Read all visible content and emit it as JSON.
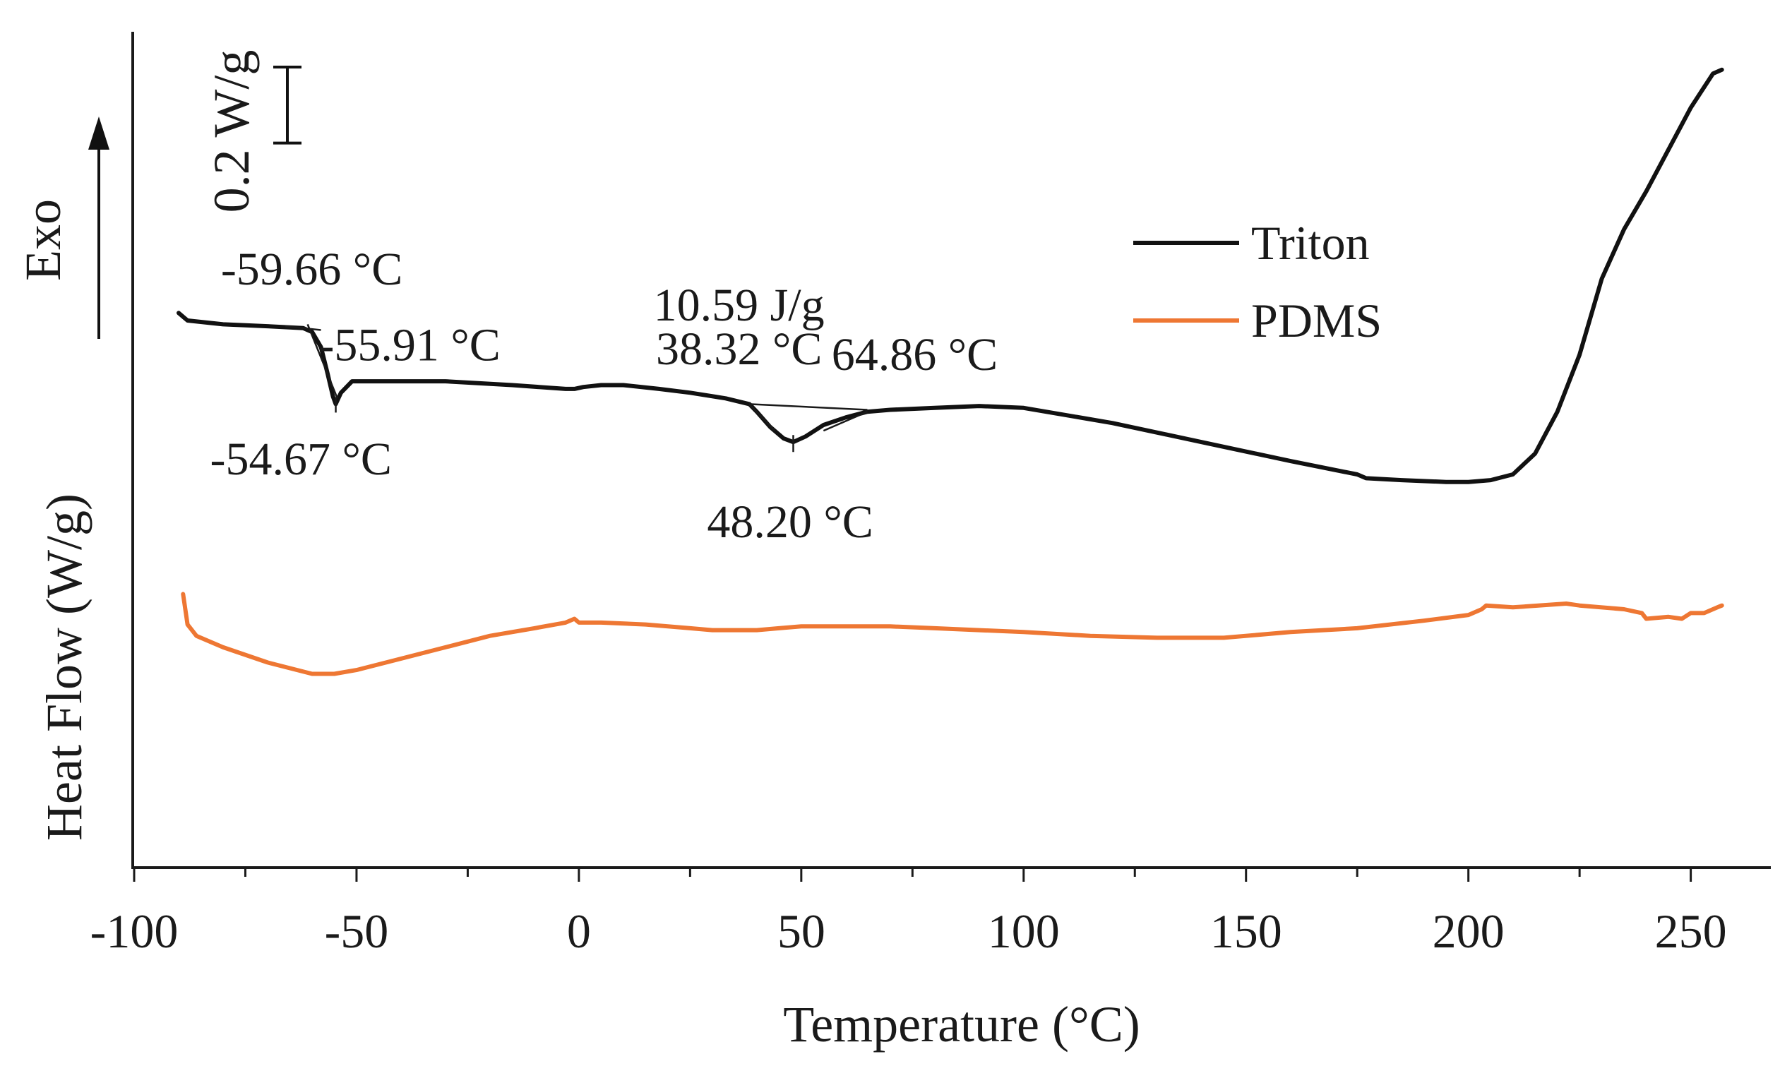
{
  "chart_data": {
    "type": "line",
    "title": "",
    "xlabel": "Temperature (°C)",
    "ylabel": "Heat Flow (W/g)",
    "exo_label": "Exo",
    "scale_bar_label": "0.2 W/g",
    "xlim": [
      -100,
      268
    ],
    "ylim": [
      -1.0,
      1.2
    ],
    "xticks": [
      -100,
      -50,
      0,
      50,
      100,
      150,
      200,
      250
    ],
    "xtick_labels": [
      "-100",
      "-50",
      "0",
      "50",
      "100",
      "150",
      "200",
      "250"
    ],
    "legend": {
      "position": "top-right"
    },
    "series": [
      {
        "name": "Triton",
        "color": "#111111",
        "x": [
          -90,
          -88,
          -80,
          -70,
          -62,
          -60,
          -58,
          -56.5,
          -55.3,
          -54.67,
          -53.5,
          -51,
          -45,
          -30,
          -15,
          -3,
          -1,
          1,
          5,
          10,
          18,
          25,
          33,
          38.32,
          40,
          43,
          46,
          48.2,
          51,
          55,
          60,
          64.86,
          70,
          80,
          90,
          100,
          120,
          140,
          160,
          175,
          177,
          185,
          195,
          200,
          205,
          210,
          215,
          220,
          225,
          230,
          235,
          240,
          245,
          250,
          255,
          257
        ],
        "y": [
          0.46,
          0.44,
          0.43,
          0.425,
          0.42,
          0.41,
          0.37,
          0.3,
          0.24,
          0.22,
          0.25,
          0.28,
          0.28,
          0.28,
          0.27,
          0.26,
          0.26,
          0.265,
          0.27,
          0.27,
          0.26,
          0.25,
          0.235,
          0.22,
          0.2,
          0.16,
          0.13,
          0.12,
          0.135,
          0.165,
          0.185,
          0.2,
          0.205,
          0.21,
          0.215,
          0.21,
          0.17,
          0.12,
          0.07,
          0.035,
          0.025,
          0.02,
          0.015,
          0.015,
          0.02,
          0.035,
          0.09,
          0.2,
          0.35,
          0.55,
          0.68,
          0.78,
          0.89,
          1.0,
          1.09,
          1.1
        ],
        "annotations": [
          {
            "label": "-59.66 °C",
            "x": -59.66
          },
          {
            "label": "-55.91 °C",
            "x": -55.91
          },
          {
            "label": "-54.67 °C",
            "x": -54.67
          },
          {
            "label": "10.59 J/g",
            "x": 48.2
          },
          {
            "label": "38.32 °C",
            "x": 38.32
          },
          {
            "label": "64.86 °C",
            "x": 64.86
          },
          {
            "label": "48.20 °C",
            "x": 48.2
          }
        ]
      },
      {
        "name": "PDMS",
        "color": "#ee7733",
        "x": [
          -89,
          -88,
          -86,
          -80,
          -70,
          -60,
          -55,
          -50,
          -40,
          -30,
          -20,
          -10,
          -3,
          -1,
          0,
          5,
          15,
          25,
          30,
          40,
          45,
          50,
          60,
          70,
          80,
          90,
          100,
          115,
          130,
          145,
          160,
          175,
          190,
          200,
          203,
          204,
          210,
          222,
          225,
          235,
          239,
          240,
          245,
          248,
          250,
          253,
          256,
          257
        ],
        "y": [
          -0.28,
          -0.36,
          -0.39,
          -0.42,
          -0.46,
          -0.49,
          -0.49,
          -0.48,
          -0.45,
          -0.42,
          -0.39,
          -0.37,
          -0.355,
          -0.345,
          -0.355,
          -0.355,
          -0.36,
          -0.37,
          -0.375,
          -0.375,
          -0.37,
          -0.365,
          -0.365,
          -0.365,
          -0.37,
          -0.375,
          -0.38,
          -0.39,
          -0.395,
          -0.395,
          -0.38,
          -0.37,
          -0.35,
          -0.335,
          -0.32,
          -0.31,
          -0.315,
          -0.305,
          -0.31,
          -0.32,
          -0.33,
          -0.345,
          -0.34,
          -0.345,
          -0.33,
          -0.33,
          -0.315,
          -0.31
        ]
      }
    ]
  }
}
